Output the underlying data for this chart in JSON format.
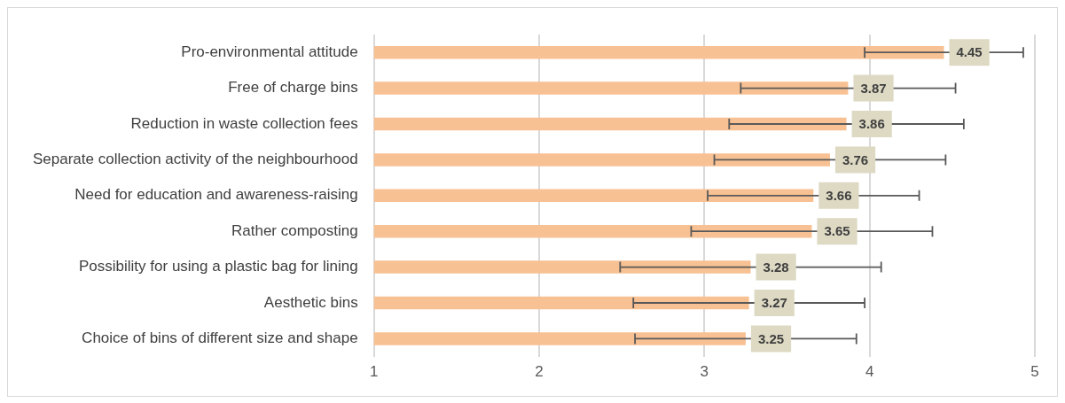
{
  "chart_data": {
    "type": "bar",
    "orientation": "horizontal",
    "categories": [
      "Pro-environmental attitude",
      "Free of charge bins",
      "Reduction in waste collection fees",
      "Separate collection activity of the neighbourhood",
      "Need for education and awareness-raising",
      "Rather composting",
      "Possibility for using a plastic bag for lining",
      "Aesthetic bins",
      "Choice of bins of different size and shape"
    ],
    "values": [
      4.45,
      3.87,
      3.86,
      3.76,
      3.66,
      3.65,
      3.28,
      3.27,
      3.25
    ],
    "errors": [
      0.48,
      0.65,
      0.71,
      0.7,
      0.64,
      0.73,
      0.79,
      0.7,
      0.67
    ],
    "color": "#f8c193",
    "xlim": [
      1,
      5
    ],
    "xticks": [
      1,
      2,
      3,
      4,
      5
    ],
    "grid": "x",
    "data_labels": true,
    "legend": false
  }
}
